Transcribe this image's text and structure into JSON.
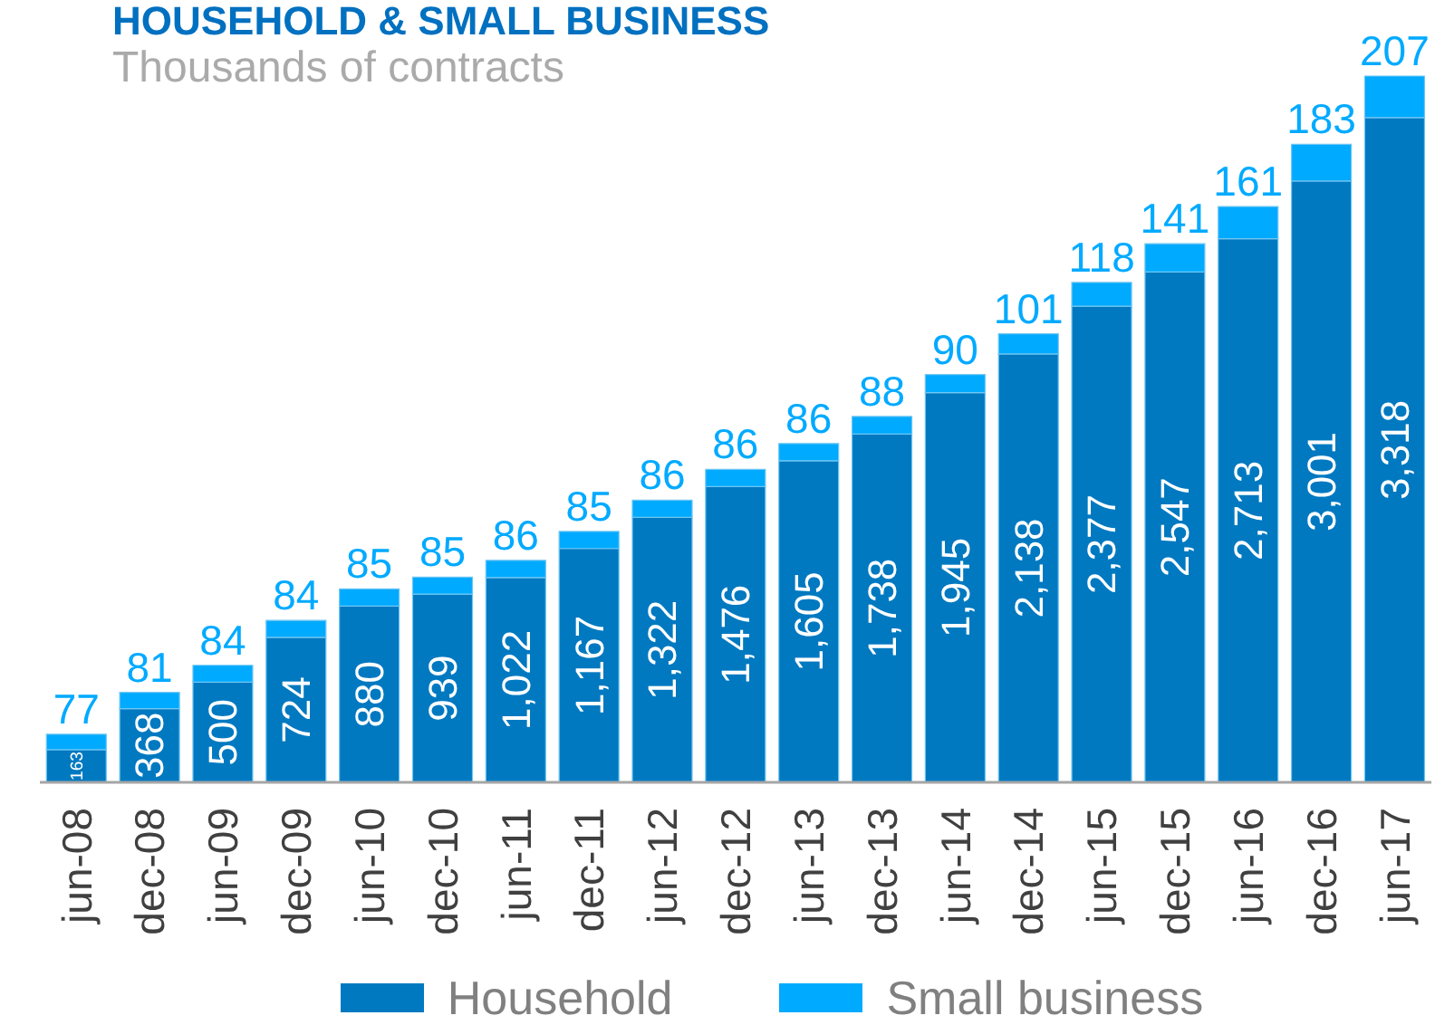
{
  "chart_data": {
    "type": "bar",
    "title": "HOUSEHOLD & SMALL BUSINESS",
    "subtitle": "Thousands of contracts",
    "categories": [
      "jun-08",
      "dec-08",
      "jun-09",
      "dec-09",
      "jun-10",
      "dec-10",
      "jun-11",
      "dec-11",
      "jun-12",
      "dec-12",
      "jun-13",
      "dec-13",
      "jun-14",
      "dec-14",
      "jun-15",
      "dec-15",
      "jun-16",
      "dec-16",
      "jun-17"
    ],
    "series": [
      {
        "name": "Household",
        "color": "#0079c1",
        "values": [
          163,
          368,
          500,
          724,
          880,
          939,
          1022,
          1167,
          1322,
          1476,
          1605,
          1738,
          1945,
          2138,
          2377,
          2547,
          2713,
          3001,
          3318
        ],
        "value_labels": [
          "163",
          "368",
          "500",
          "724",
          "880",
          "939",
          "1,022",
          "1,167",
          "1,322",
          "1,476",
          "1,605",
          "1,738",
          "1,945",
          "2,138",
          "2,377",
          "2,547",
          "2,713",
          "3,001",
          "3,318"
        ]
      },
      {
        "name": "Small business",
        "color": "#00aaff",
        "values": [
          77,
          81,
          84,
          84,
          85,
          85,
          86,
          85,
          86,
          86,
          86,
          88,
          90,
          101,
          118,
          141,
          161,
          183,
          207
        ]
      }
    ],
    "stacked": true,
    "data_labels": true,
    "legend": "bottom"
  }
}
